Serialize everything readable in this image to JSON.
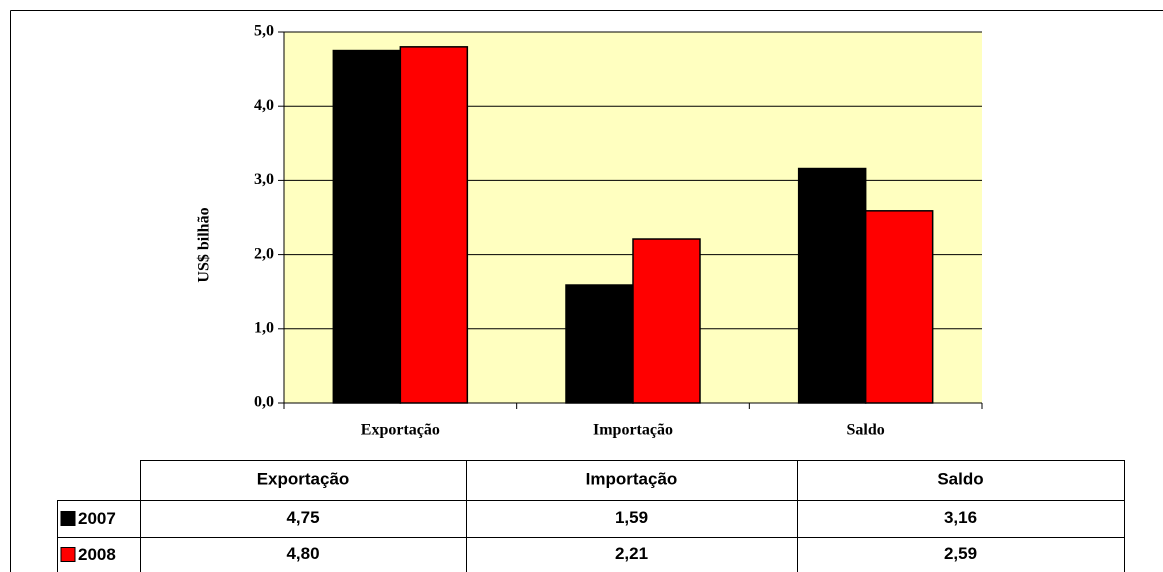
{
  "chart_data": {
    "type": "bar",
    "ylabel": "US$ bilhão",
    "categories": [
      "Exportação",
      "Importação",
      "Saldo"
    ],
    "series": [
      {
        "name": "2007",
        "color": "#000000",
        "values": [
          4.75,
          1.59,
          3.16
        ],
        "value_labels": [
          "4,75",
          "1,59",
          "3,16"
        ]
      },
      {
        "name": "2008",
        "color": "#ff0000",
        "values": [
          4.8,
          2.21,
          2.59
        ],
        "value_labels": [
          "4,80",
          "2,21",
          "2,59"
        ]
      }
    ],
    "ylim": [
      0,
      5
    ],
    "yticks": [
      {
        "value": 0,
        "label": "0,0"
      },
      {
        "value": 1,
        "label": "1,0"
      },
      {
        "value": 2,
        "label": "2,0"
      },
      {
        "value": 3,
        "label": "3,0"
      },
      {
        "value": 4,
        "label": "4,0"
      },
      {
        "value": 5,
        "label": "5,0"
      }
    ],
    "grid": true,
    "plot_background": "#ffffc0"
  }
}
